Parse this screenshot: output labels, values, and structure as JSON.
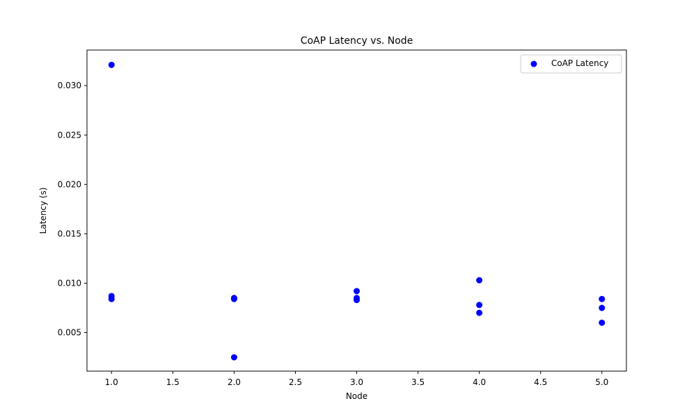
{
  "chart_data": {
    "type": "scatter",
    "title": "CoAP Latency vs. Node",
    "xlabel": "Node",
    "ylabel": "Latency (s)",
    "xlim": [
      0.8,
      5.2
    ],
    "ylim": [
      0.0011,
      0.0336
    ],
    "xticks": [
      1.0,
      1.5,
      2.0,
      2.5,
      3.0,
      3.5,
      4.0,
      4.5,
      5.0
    ],
    "xtick_labels": [
      "1.0",
      "1.5",
      "2.0",
      "2.5",
      "3.0",
      "3.5",
      "4.0",
      "4.5",
      "5.0"
    ],
    "yticks": [
      0.005,
      0.01,
      0.015,
      0.02,
      0.025,
      0.03
    ],
    "ytick_labels": [
      "0.005",
      "0.010",
      "0.015",
      "0.020",
      "0.025",
      "0.030"
    ],
    "grid": false,
    "legend_position": "top-right",
    "series": [
      {
        "name": "CoAP Latency",
        "color": "#0000ff",
        "marker": "circle",
        "x": [
          1,
          1,
          1,
          2,
          2,
          2,
          3,
          3,
          3,
          4,
          4,
          4,
          5,
          5,
          5
        ],
        "y": [
          0.0321,
          0.0087,
          0.0084,
          0.0085,
          0.0084,
          0.0025,
          0.0092,
          0.0085,
          0.0083,
          0.0103,
          0.0078,
          0.007,
          0.0084,
          0.0075,
          0.006
        ]
      }
    ]
  }
}
